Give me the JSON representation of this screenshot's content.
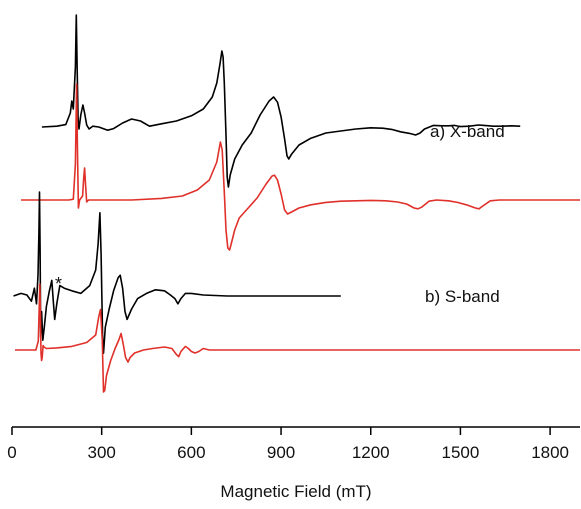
{
  "chart_data": {
    "type": "line",
    "xlabel": "Magnetic Field (mT)",
    "ylabel": "",
    "xlim": [
      0,
      1900
    ],
    "x_ticks": [
      0,
      300,
      600,
      900,
      1200,
      1500,
      1800
    ],
    "x_tick_labels": [
      "0",
      "300",
      "600",
      "900",
      "1200",
      "1500",
      "1800"
    ],
    "grid": false,
    "legend": "none",
    "panels": [
      {
        "label": "a) X-band",
        "series": [
          {
            "role": "experimental",
            "color": "#000000",
            "points": [
              [
                100,
                0
              ],
              [
                150,
                0.02
              ],
              [
                180,
                0.06
              ],
              [
                195,
                0.35
              ],
              [
                200,
                0.65
              ],
              [
                205,
                0.45
              ],
              [
                208,
                0.9
              ],
              [
                212,
                1.5
              ],
              [
                215,
                2.8
              ],
              [
                218,
                1.4
              ],
              [
                221,
                0.2
              ],
              [
                224,
                -0.05
              ],
              [
                230,
                0.3
              ],
              [
                237,
                0.55
              ],
              [
                243,
                0.35
              ],
              [
                250,
                0.05
              ],
              [
                258,
                -0.05
              ],
              [
                270,
                0.02
              ],
              [
                290,
                0
              ],
              [
                320,
                -0.08
              ],
              [
                340,
                -0.04
              ],
              [
                370,
                0.1
              ],
              [
                400,
                0.2
              ],
              [
                430,
                0.15
              ],
              [
                460,
                0.02
              ],
              [
                500,
                0.08
              ],
              [
                550,
                0.15
              ],
              [
                600,
                0.28
              ],
              [
                640,
                0.45
              ],
              [
                670,
                0.75
              ],
              [
                685,
                1.1
              ],
              [
                695,
                1.55
              ],
              [
                702,
                1.9
              ],
              [
                706,
                1.75
              ],
              [
                710,
                1.1
              ],
              [
                716,
                -0.2
              ],
              [
                720,
                -1.25
              ],
              [
                724,
                -1.5
              ],
              [
                730,
                -1.2
              ],
              [
                745,
                -0.8
              ],
              [
                770,
                -0.45
              ],
              [
                800,
                -0.15
              ],
              [
                830,
                0.3
              ],
              [
                860,
                0.65
              ],
              [
                875,
                0.75
              ],
              [
                888,
                0.62
              ],
              [
                900,
                0.25
              ],
              [
                912,
                -0.3
              ],
              [
                920,
                -0.72
              ],
              [
                926,
                -0.8
              ],
              [
                935,
                -0.68
              ],
              [
                960,
                -0.45
              ],
              [
                1000,
                -0.28
              ],
              [
                1050,
                -0.15
              ],
              [
                1100,
                -0.1
              ],
              [
                1150,
                -0.05
              ],
              [
                1200,
                -0.02
              ],
              [
                1240,
                -0.03
              ],
              [
                1270,
                -0.06
              ],
              [
                1300,
                -0.12
              ],
              [
                1330,
                -0.16
              ],
              [
                1350,
                -0.2
              ],
              [
                1365,
                -0.15
              ],
              [
                1380,
                -0.05
              ],
              [
                1410,
                0.04
              ],
              [
                1440,
                0.03
              ],
              [
                1460,
                0.03
              ],
              [
                1480,
                0.04
              ],
              [
                1500,
                0.01
              ],
              [
                1530,
                0.02
              ],
              [
                1560,
                0.05
              ],
              [
                1580,
                0.04
              ],
              [
                1610,
                0.02
              ],
              [
                1640,
                0.02
              ],
              [
                1670,
                0.03
              ],
              [
                1700,
                0.02
              ]
            ]
          },
          {
            "role": "simulation",
            "color": "#e0302a",
            "points": [
              [
                30,
                0
              ],
              [
                190,
                0
              ],
              [
                205,
                0.02
              ],
              [
                212,
                0.9
              ],
              [
                216,
                2.9
              ],
              [
                219,
                1.2
              ],
              [
                222,
                -0.2
              ],
              [
                226,
                0
              ],
              [
                236,
                0.1
              ],
              [
                240,
                0.55
              ],
              [
                243,
                0.8
              ],
              [
                246,
                0.4
              ],
              [
                250,
                -0.05
              ],
              [
                256,
                0
              ],
              [
                300,
                0
              ],
              [
                400,
                0
              ],
              [
                500,
                0.04
              ],
              [
                570,
                0.1
              ],
              [
                620,
                0.25
              ],
              [
                660,
                0.5
              ],
              [
                685,
                0.95
              ],
              [
                697,
                1.45
              ],
              [
                703,
                1.25
              ],
              [
                710,
                0.2
              ],
              [
                716,
                -0.75
              ],
              [
                722,
                -1.2
              ],
              [
                728,
                -1.25
              ],
              [
                735,
                -1.05
              ],
              [
                745,
                -0.75
              ],
              [
                760,
                -0.45
              ],
              [
                790,
                -0.2
              ],
              [
                820,
                0.05
              ],
              [
                850,
                0.4
              ],
              [
                870,
                0.6
              ],
              [
                878,
                0.62
              ],
              [
                888,
                0.5
              ],
              [
                900,
                0.15
              ],
              [
                912,
                -0.25
              ],
              [
                922,
                -0.35
              ],
              [
                935,
                -0.3
              ],
              [
                960,
                -0.2
              ],
              [
                1000,
                -0.12
              ],
              [
                1050,
                -0.06
              ],
              [
                1100,
                -0.03
              ],
              [
                1200,
                -0.01
              ],
              [
                1250,
                -0.02
              ],
              [
                1290,
                -0.05
              ],
              [
                1320,
                -0.1
              ],
              [
                1345,
                -0.2
              ],
              [
                1358,
                -0.22
              ],
              [
                1370,
                -0.18
              ],
              [
                1395,
                -0.03
              ],
              [
                1420,
                0
              ],
              [
                1460,
                -0.02
              ],
              [
                1490,
                -0.06
              ],
              [
                1520,
                -0.12
              ],
              [
                1550,
                -0.2
              ],
              [
                1562,
                -0.22
              ],
              [
                1575,
                -0.15
              ],
              [
                1600,
                -0.02
              ],
              [
                1630,
                0
              ],
              [
                1900,
                0
              ]
            ]
          }
        ]
      },
      {
        "label": "b) S-band",
        "series": [
          {
            "role": "experimental",
            "color": "#000000",
            "points": [
              [
                5,
                0
              ],
              [
                30,
                0.05
              ],
              [
                50,
                0.02
              ],
              [
                65,
                -0.1
              ],
              [
                75,
                0.15
              ],
              [
                82,
                -0.15
              ],
              [
                87,
                0.4
              ],
              [
                90,
                1.2
              ],
              [
                92,
                2.0
              ],
              [
                94,
                0.9
              ],
              [
                96,
                -0.8
              ],
              [
                99,
                -0.3
              ],
              [
                103,
                -0.85
              ],
              [
                108,
                -0.6
              ],
              [
                115,
                -0.2
              ],
              [
                125,
                0.1
              ],
              [
                133,
                0.3
              ],
              [
                138,
                -0.1
              ],
              [
                143,
                -0.45
              ],
              [
                150,
                -0.15
              ],
              [
                160,
                0.2
              ],
              [
                175,
                0.15
              ],
              [
                200,
                0.1
              ],
              [
                230,
                0.05
              ],
              [
                260,
                0.2
              ],
              [
                280,
                0.5
              ],
              [
                288,
                1.0
              ],
              [
                294,
                1.6
              ],
              [
                298,
                0.8
              ],
              [
                303,
                -0.8
              ],
              [
                306,
                -1.1
              ],
              [
                312,
                -0.6
              ],
              [
                325,
                -0.25
              ],
              [
                340,
                0.1
              ],
              [
                355,
                0.35
              ],
              [
                362,
                0.4
              ],
              [
                370,
                0.15
              ],
              [
                378,
                -0.3
              ],
              [
                385,
                -0.45
              ],
              [
                400,
                -0.25
              ],
              [
                420,
                -0.05
              ],
              [
                450,
                0.05
              ],
              [
                480,
                0.12
              ],
              [
                510,
                0.1
              ],
              [
                530,
                0.02
              ],
              [
                545,
                -0.05
              ],
              [
                555,
                -0.15
              ],
              [
                565,
                -0.05
              ],
              [
                580,
                0.05
              ],
              [
                600,
                0.05
              ],
              [
                640,
                0.02
              ],
              [
                680,
                0.01
              ],
              [
                720,
                0
              ],
              [
                760,
                0
              ],
              [
                800,
                0
              ],
              [
                850,
                0
              ],
              [
                900,
                0
              ],
              [
                950,
                0
              ],
              [
                1000,
                0
              ],
              [
                1050,
                0
              ],
              [
                1100,
                0
              ]
            ]
          },
          {
            "role": "simulation",
            "color": "#e0302a",
            "points": [
              [
                10,
                0
              ],
              [
                80,
                0
              ],
              [
                88,
                0.3
              ],
              [
                91,
                1.4
              ],
              [
                93,
                2.2
              ],
              [
                95,
                1.3
              ],
              [
                97,
                -0.1
              ],
              [
                99,
                -0.35
              ],
              [
                101,
                -0.25
              ],
              [
                104,
                0.15
              ],
              [
                107,
                0.1
              ],
              [
                115,
                0.05
              ],
              [
                150,
                0.07
              ],
              [
                200,
                0.12
              ],
              [
                250,
                0.25
              ],
              [
                280,
                0.5
              ],
              [
                290,
                1.1
              ],
              [
                296,
                1.35
              ],
              [
                302,
                0.3
              ],
              [
                306,
                -1.4
              ],
              [
                310,
                -1.35
              ],
              [
                316,
                -0.85
              ],
              [
                330,
                -0.35
              ],
              [
                345,
                0.05
              ],
              [
                358,
                0.35
              ],
              [
                365,
                0.55
              ],
              [
                372,
                0.2
              ],
              [
                380,
                -0.25
              ],
              [
                388,
                -0.4
              ],
              [
                395,
                -0.25
              ],
              [
                410,
                -0.1
              ],
              [
                440,
                0
              ],
              [
                470,
                0.05
              ],
              [
                510,
                0.1
              ],
              [
                535,
                0.05
              ],
              [
                550,
                -0.15
              ],
              [
                558,
                -0.22
              ],
              [
                565,
                -0.05
              ],
              [
                580,
                0.12
              ],
              [
                590,
                0.05
              ],
              [
                600,
                -0.05
              ],
              [
                612,
                -0.1
              ],
              [
                625,
                -0.05
              ],
              [
                640,
                0.05
              ],
              [
                660,
                0
              ],
              [
                700,
                0
              ],
              [
                1900,
                0
              ]
            ]
          }
        ]
      }
    ],
    "annotations": [
      "*"
    ]
  }
}
